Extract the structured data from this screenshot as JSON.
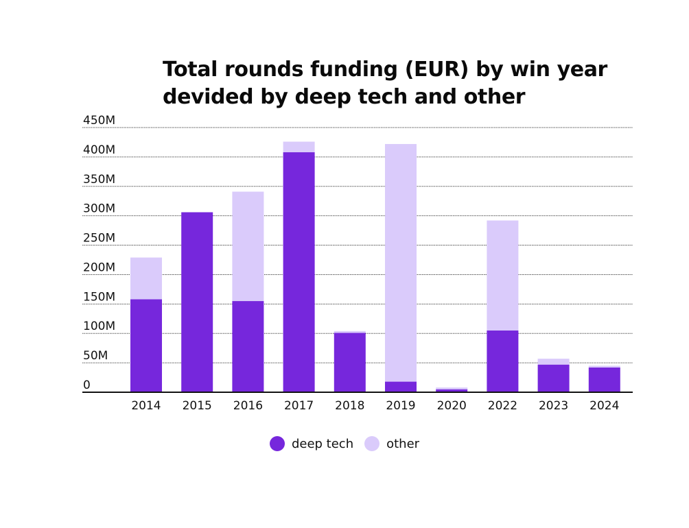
{
  "chart_data": {
    "type": "bar",
    "stacked": true,
    "title": "Total rounds funding (EUR) by win year devided by deep tech and other",
    "title_lines": [
      "Total rounds funding (EUR) by win year",
      "devided by deep tech and other"
    ],
    "categories": [
      "2014",
      "2015",
      "2016",
      "2017",
      "2018",
      "2019",
      "2020",
      "2022",
      "2023",
      "2024"
    ],
    "series": [
      {
        "name": "deep tech",
        "color": "#7627dc",
        "values": [
          158,
          306,
          155,
          408,
          101,
          18,
          5,
          105,
          47,
          42
        ]
      },
      {
        "name": "other",
        "color": "#dacbfb",
        "values": [
          71,
          0,
          186,
          18,
          3,
          404,
          3,
          187,
          10,
          3
        ]
      }
    ],
    "yticks": [
      {
        "value": 0,
        "label": "0"
      },
      {
        "value": 50,
        "label": "50M"
      },
      {
        "value": 100,
        "label": "100M"
      },
      {
        "value": 150,
        "label": "150M"
      },
      {
        "value": 200,
        "label": "200M"
      },
      {
        "value": 250,
        "label": "250M"
      },
      {
        "value": 300,
        "label": "300M"
      },
      {
        "value": 350,
        "label": "350M"
      },
      {
        "value": 400,
        "label": "400M"
      },
      {
        "value": 450,
        "label": "450M"
      }
    ],
    "ylim": [
      0,
      450
    ],
    "xlabel": "",
    "ylabel": "",
    "legend": "bottom",
    "grid": true
  }
}
